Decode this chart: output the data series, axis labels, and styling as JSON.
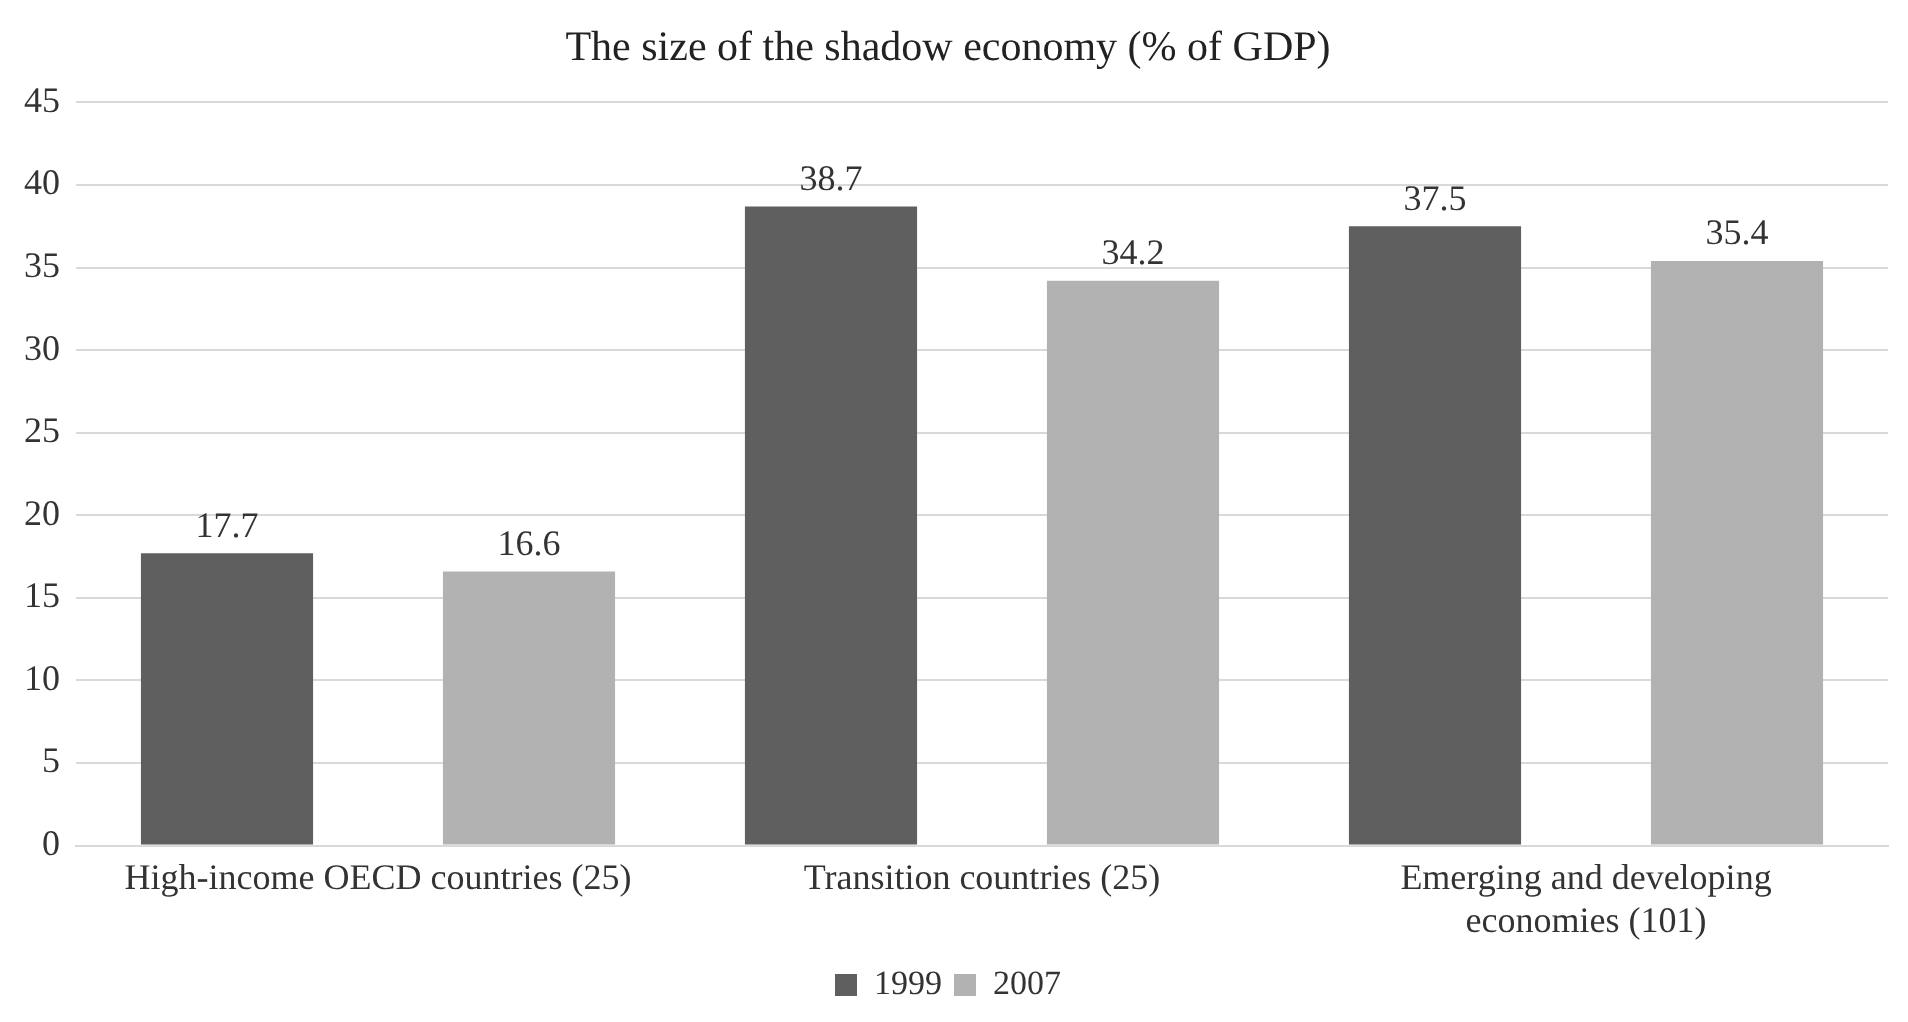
{
  "chart_data": {
    "type": "bar",
    "title": "The size of the shadow economy (% of GDP)",
    "categories": [
      "High-income OECD countries (25)",
      "Transition countries (25)",
      "Emerging and developing economies (101)"
    ],
    "series": [
      {
        "name": "1999",
        "color": "#5f5f5f",
        "values": [
          17.7,
          38.7,
          37.5
        ]
      },
      {
        "name": "2007",
        "color": "#b2b2b2",
        "values": [
          16.6,
          34.2,
          35.4
        ]
      }
    ],
    "ylim": [
      0,
      45
    ],
    "yticks": [
      0,
      5,
      10,
      15,
      20,
      25,
      30,
      35,
      40,
      45
    ],
    "grid": "y",
    "legend": "bottom",
    "data_labels": true
  }
}
